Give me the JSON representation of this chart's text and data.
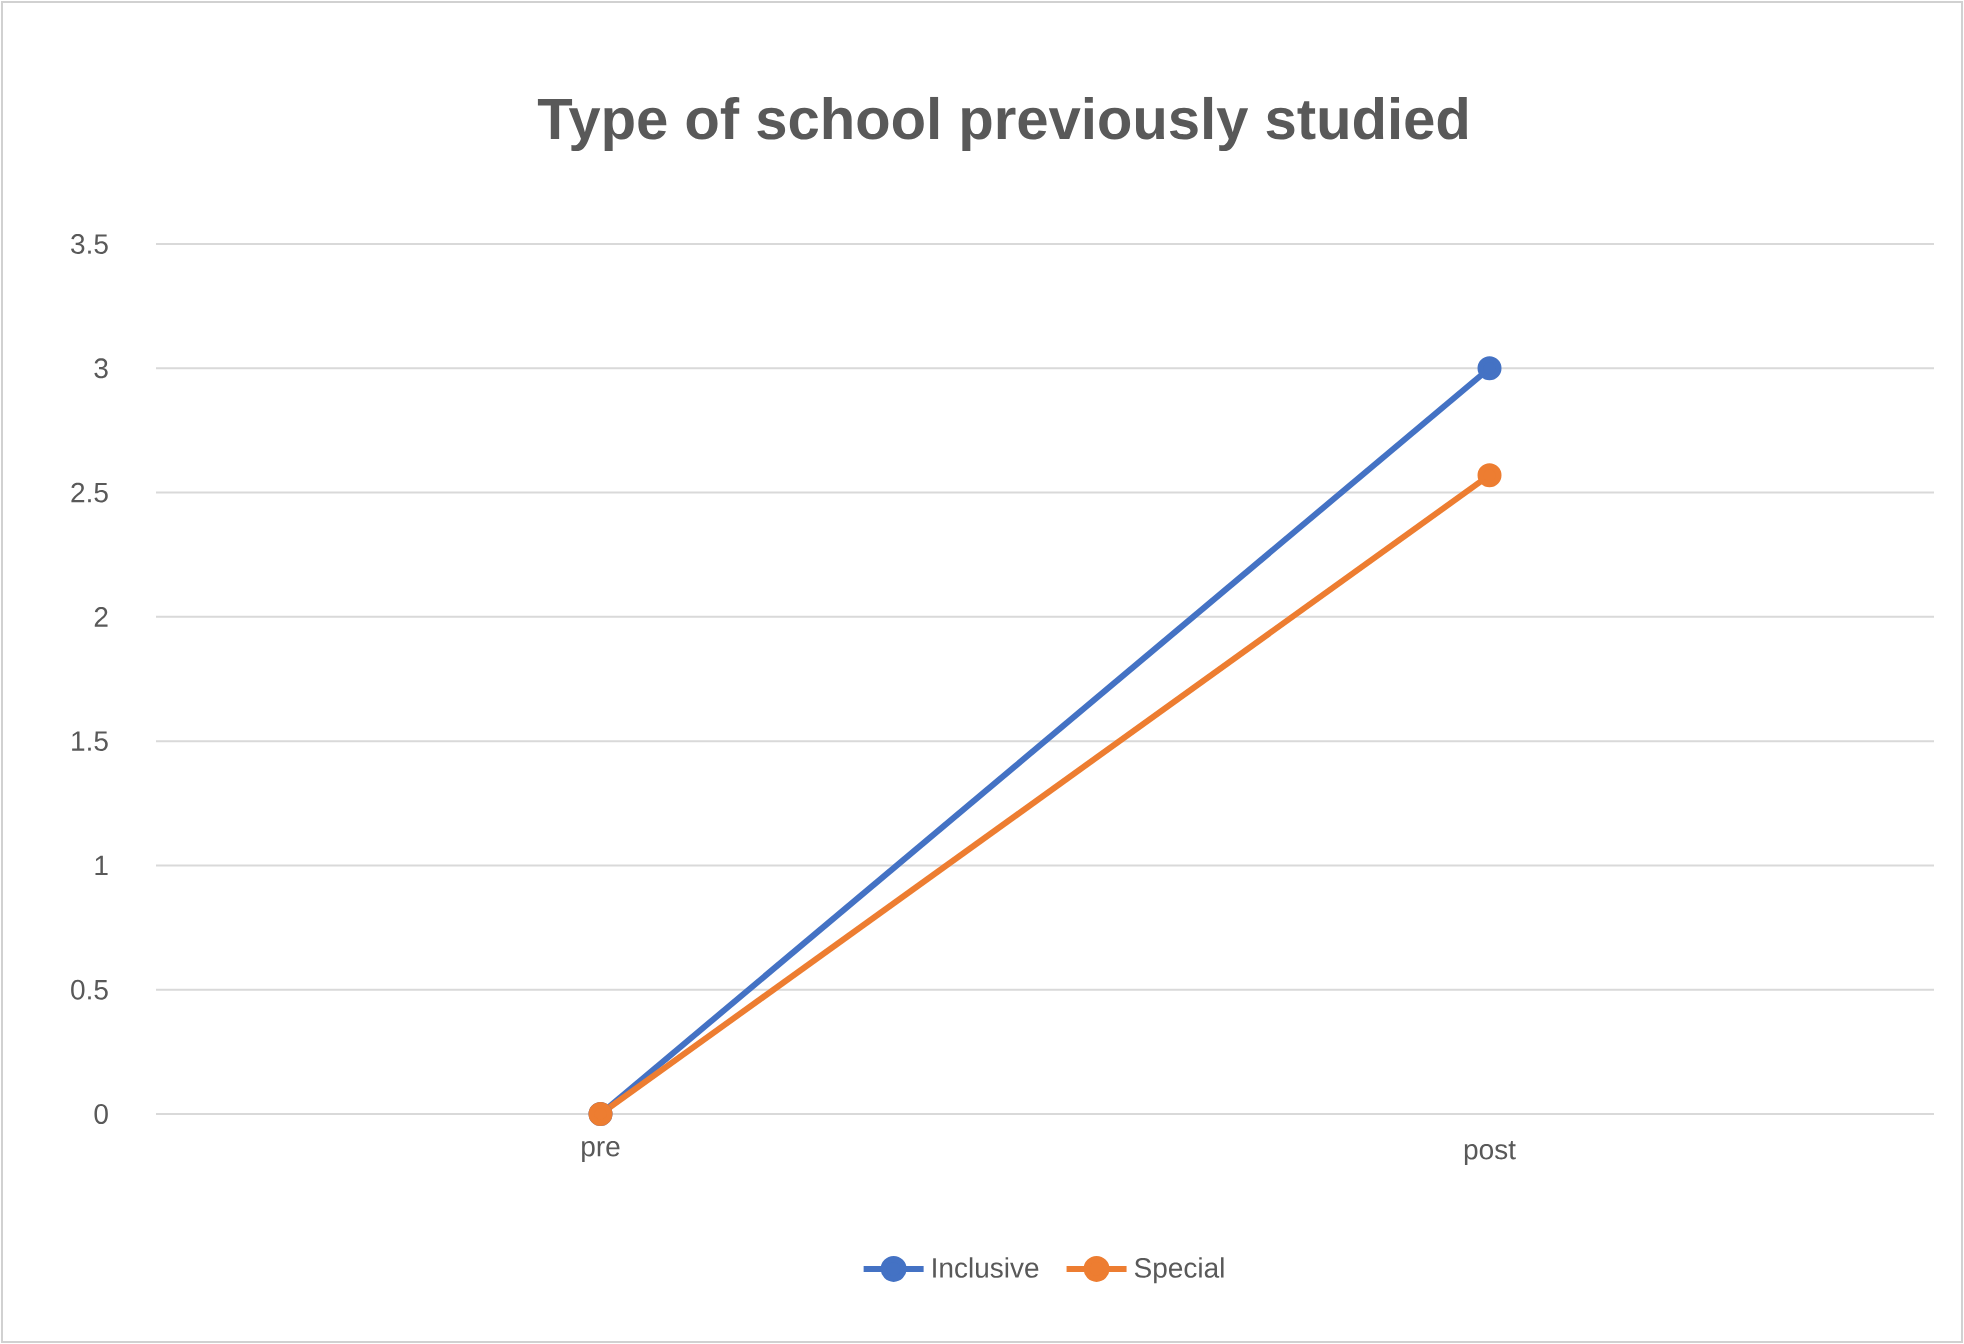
{
  "chart_data": {
    "type": "line",
    "title": "Type of school previously studied",
    "categories": [
      "pre",
      "post"
    ],
    "series": [
      {
        "name": "Inclusive",
        "color": "#4472c4",
        "values": [
          0,
          3
        ]
      },
      {
        "name": "Special",
        "color": "#ed7d31",
        "values": [
          0,
          2.57
        ]
      }
    ],
    "ylim": [
      0,
      3.5
    ],
    "yticks": [
      0,
      0.5,
      1,
      1.5,
      2,
      2.5,
      3,
      3.5
    ],
    "grid": "y",
    "legend": "bottom",
    "marker": "circle",
    "line_style": "solid"
  }
}
